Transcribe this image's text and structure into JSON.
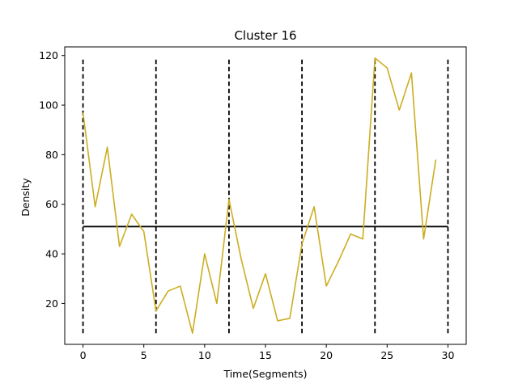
{
  "chart_data": {
    "type": "line",
    "title": "Cluster 16",
    "xlabel": "Time(Segments)",
    "ylabel": "Density",
    "xlim": [
      -1.5,
      31.5
    ],
    "ylim": [
      3.5,
      123.5
    ],
    "xticks": [
      0,
      5,
      10,
      15,
      20,
      25,
      30
    ],
    "yticks": [
      20,
      40,
      60,
      80,
      100,
      120
    ],
    "grid": false,
    "series": [
      {
        "color": "#ccad22",
        "x": [
          0,
          1,
          2,
          3,
          4,
          5,
          6,
          7,
          8,
          9,
          10,
          11,
          12,
          13,
          14,
          15,
          16,
          17,
          18,
          19,
          20,
          21,
          22,
          23,
          24,
          25,
          26,
          27,
          28,
          29
        ],
        "values": [
          97,
          59,
          83,
          43,
          56,
          49,
          17,
          25,
          27,
          8,
          40,
          20,
          62,
          38,
          18,
          32,
          13,
          14,
          44,
          59,
          27,
          37,
          48,
          46,
          119,
          115,
          98,
          113,
          46,
          78
        ]
      }
    ],
    "reference_line": {
      "y": 51,
      "x_range": [
        0,
        30
      ],
      "color": "#000000"
    },
    "segment_lines": {
      "x": [
        0,
        6,
        12,
        18,
        24,
        30
      ],
      "y_range": [
        8,
        119
      ],
      "color": "#000000",
      "style": "dashed"
    }
  }
}
